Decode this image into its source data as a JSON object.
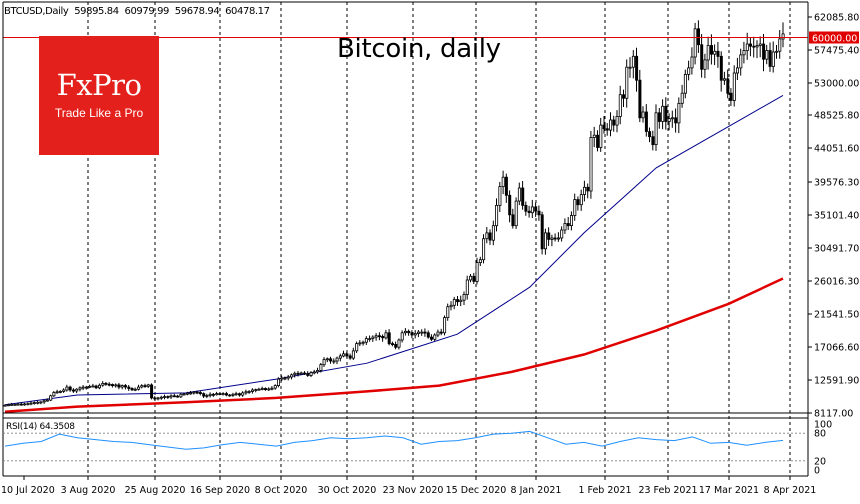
{
  "header": {
    "symbol": "BTCUSD,Daily",
    "open": "59895.84",
    "high": "60979.99",
    "low": "59678.94",
    "close": "60478.17"
  },
  "logo": {
    "brand": "FxPro",
    "tagline": "Trade Like a Pro"
  },
  "title": "Bitcoin, daily",
  "colors": {
    "candle": "#000000",
    "ma_short": "#00008b",
    "ma_long": "#e00000",
    "level_line": "#e00000",
    "level_label_bg": "#e00000",
    "rsi_line": "#1e90ff",
    "logo_bg": "#e3201b"
  },
  "icons": {
    "logo": "fxpro-logo"
  },
  "chart_data": [
    {
      "type": "candlestick",
      "symbol": "BTCUSD",
      "timeframe": "Daily",
      "title": "Bitcoin, daily",
      "x_tick_labels": [
        "10 Jul 2020",
        "3 Aug 2020",
        "25 Aug 2020",
        "16 Sep 2020",
        "8 Oct 2020",
        "30 Oct 2020",
        "23 Nov 2020",
        "15 Dec 2020",
        "8 Jan 2021",
        "1 Feb 2021",
        "23 Feb 2021",
        "17 Mar 2021",
        "8 Apr 2021"
      ],
      "y_tick_labels": [
        "62085.80",
        "57475.40",
        "53000.00",
        "48525.80",
        "44051.60",
        "39576.30",
        "35101.40",
        "30491.70",
        "26016.30",
        "21541.50",
        "17066.60",
        "12591.90",
        "8117.00"
      ],
      "ylim": [
        8117,
        63800
      ],
      "horizontal_level": {
        "value": 60000.0,
        "label": "60000.00"
      },
      "vertical_gridlines": "dashed, one per tick label",
      "series": [
        {
          "kind": "ohlc",
          "close": [
            9200,
            9250,
            9300,
            9300,
            9350,
            9300,
            9380,
            9400,
            9500,
            9550,
            9600,
            9650,
            9800,
            9900,
            10500,
            10950,
            11050,
            11100,
            11300,
            11700,
            11300,
            11150,
            11400,
            11600,
            11700,
            11700,
            11800,
            11850,
            11600,
            11950,
            12200,
            12100,
            12050,
            11900,
            12000,
            11700,
            11900,
            11700,
            11500,
            11300,
            11400,
            11700,
            11900,
            11800,
            12000,
            10200,
            10100,
            10200,
            10300,
            10400,
            10350,
            10500,
            10450,
            10350,
            10700,
            10750,
            10850,
            10900,
            11000,
            10950,
            10800,
            10450,
            10550,
            10700,
            10650,
            10800,
            10700,
            10800,
            10600,
            10550,
            10700,
            10780,
            10600,
            10900,
            11050,
            11100,
            11300,
            11350,
            11400,
            11500,
            11350,
            11450,
            11550,
            11900,
            12800,
            12950,
            12950,
            13100,
            13400,
            13600,
            13550,
            13650,
            13550,
            13300,
            13700,
            13800,
            14000,
            14800,
            15500,
            15600,
            15300,
            15300,
            15700,
            16000,
            16300,
            16000,
            15700,
            16700,
            17700,
            17800,
            17900,
            18400,
            18400,
            18600,
            18800,
            18700,
            18500,
            19200,
            17700,
            17600,
            17200,
            18200,
            19200,
            19400,
            19200,
            18900,
            19100,
            19300,
            19300,
            19200,
            18600,
            18300,
            18900,
            19300,
            19200,
            21300,
            22800,
            23000,
            23800,
            23500,
            23700,
            24500,
            26500,
            27000,
            26300,
            28900,
            29300,
            32200,
            33000,
            32000,
            34000,
            36800,
            39400,
            40700,
            38200,
            35500,
            34000,
            37400,
            39200,
            36800,
            36000,
            35800,
            36600,
            36000,
            35500,
            30800,
            33000,
            32100,
            32300,
            32200,
            32300,
            33400,
            34300,
            34000,
            35400,
            37600,
            36900,
            38300,
            39300,
            38800,
            46200,
            46500,
            44800,
            47900,
            47400,
            47200,
            48600,
            47900,
            49100,
            52100,
            51600,
            55900,
            55900,
            57400,
            54100,
            48900,
            49700,
            47000,
            46300,
            45200,
            49600,
            48400,
            50500,
            48400,
            48800,
            48900,
            48200,
            50900,
            52300,
            54900,
            55800,
            57300,
            61200,
            59000,
            55600,
            56900,
            58900,
            57700,
            58100,
            57400,
            54100,
            54300,
            52300,
            51300,
            55100,
            55800,
            57600,
            58200,
            59100,
            58800,
            58700,
            58900,
            59100,
            57000,
            58200,
            56000,
            58000,
            58100,
            59800,
            60500
          ],
          "note": "daily closes estimated from price axis; wicks ~ +/-2.5% of close"
        },
        {
          "name": "MA (short)",
          "kind": "line",
          "color": "#00008b",
          "points": [
            [
              0,
              9250
            ],
            [
              40,
              10600
            ],
            [
              100,
              10900
            ],
            [
              150,
              12800
            ],
            [
              200,
              15000
            ],
            [
              250,
              19000
            ],
            [
              290,
              25500
            ],
            [
              320,
              33000
            ],
            [
              360,
              42000
            ],
            [
              395,
              47000
            ],
            [
              430,
              52000
            ]
          ]
        },
        {
          "name": "MA (long)",
          "kind": "line",
          "color": "#e00000",
          "points": [
            [
              0,
              8300
            ],
            [
              40,
              9000
            ],
            [
              100,
              9600
            ],
            [
              150,
              10200
            ],
            [
              200,
              11100
            ],
            [
              240,
              11900
            ],
            [
              280,
              13800
            ],
            [
              320,
              16200
            ],
            [
              360,
              19500
            ],
            [
              400,
              23200
            ],
            [
              430,
              26700
            ]
          ]
        }
      ]
    },
    {
      "type": "line",
      "indicator": "RSI",
      "label": "RSI(14) 64.3508",
      "y_tick_labels": [
        "100",
        "80",
        "20",
        "0"
      ],
      "ylim": [
        0,
        100
      ],
      "levels": [
        80,
        20
      ],
      "series": [
        {
          "color": "#1e90ff",
          "points": [
            [
              0,
              52
            ],
            [
              10,
              58
            ],
            [
              20,
              62
            ],
            [
              30,
              78
            ],
            [
              40,
              70
            ],
            [
              50,
              66
            ],
            [
              60,
              62
            ],
            [
              70,
              60
            ],
            [
              80,
              55
            ],
            [
              90,
              50
            ],
            [
              100,
              45
            ],
            [
              110,
              48
            ],
            [
              120,
              55
            ],
            [
              130,
              60
            ],
            [
              140,
              56
            ],
            [
              150,
              52
            ],
            [
              160,
              60
            ],
            [
              170,
              64
            ],
            [
              180,
              70
            ],
            [
              190,
              68
            ],
            [
              200,
              70
            ],
            [
              210,
              74
            ],
            [
              220,
              70
            ],
            [
              230,
              56
            ],
            [
              240,
              62
            ],
            [
              250,
              64
            ],
            [
              260,
              70
            ],
            [
              270,
              78
            ],
            [
              280,
              80
            ],
            [
              290,
              84
            ],
            [
              300,
              70
            ],
            [
              310,
              56
            ],
            [
              320,
              60
            ],
            [
              330,
              52
            ],
            [
              340,
              62
            ],
            [
              350,
              70
            ],
            [
              360,
              66
            ],
            [
              370,
              64
            ],
            [
              380,
              72
            ],
            [
              390,
              58
            ],
            [
              400,
              60
            ],
            [
              410,
              54
            ],
            [
              420,
              60
            ],
            [
              430,
              64.35
            ]
          ]
        }
      ]
    }
  ]
}
